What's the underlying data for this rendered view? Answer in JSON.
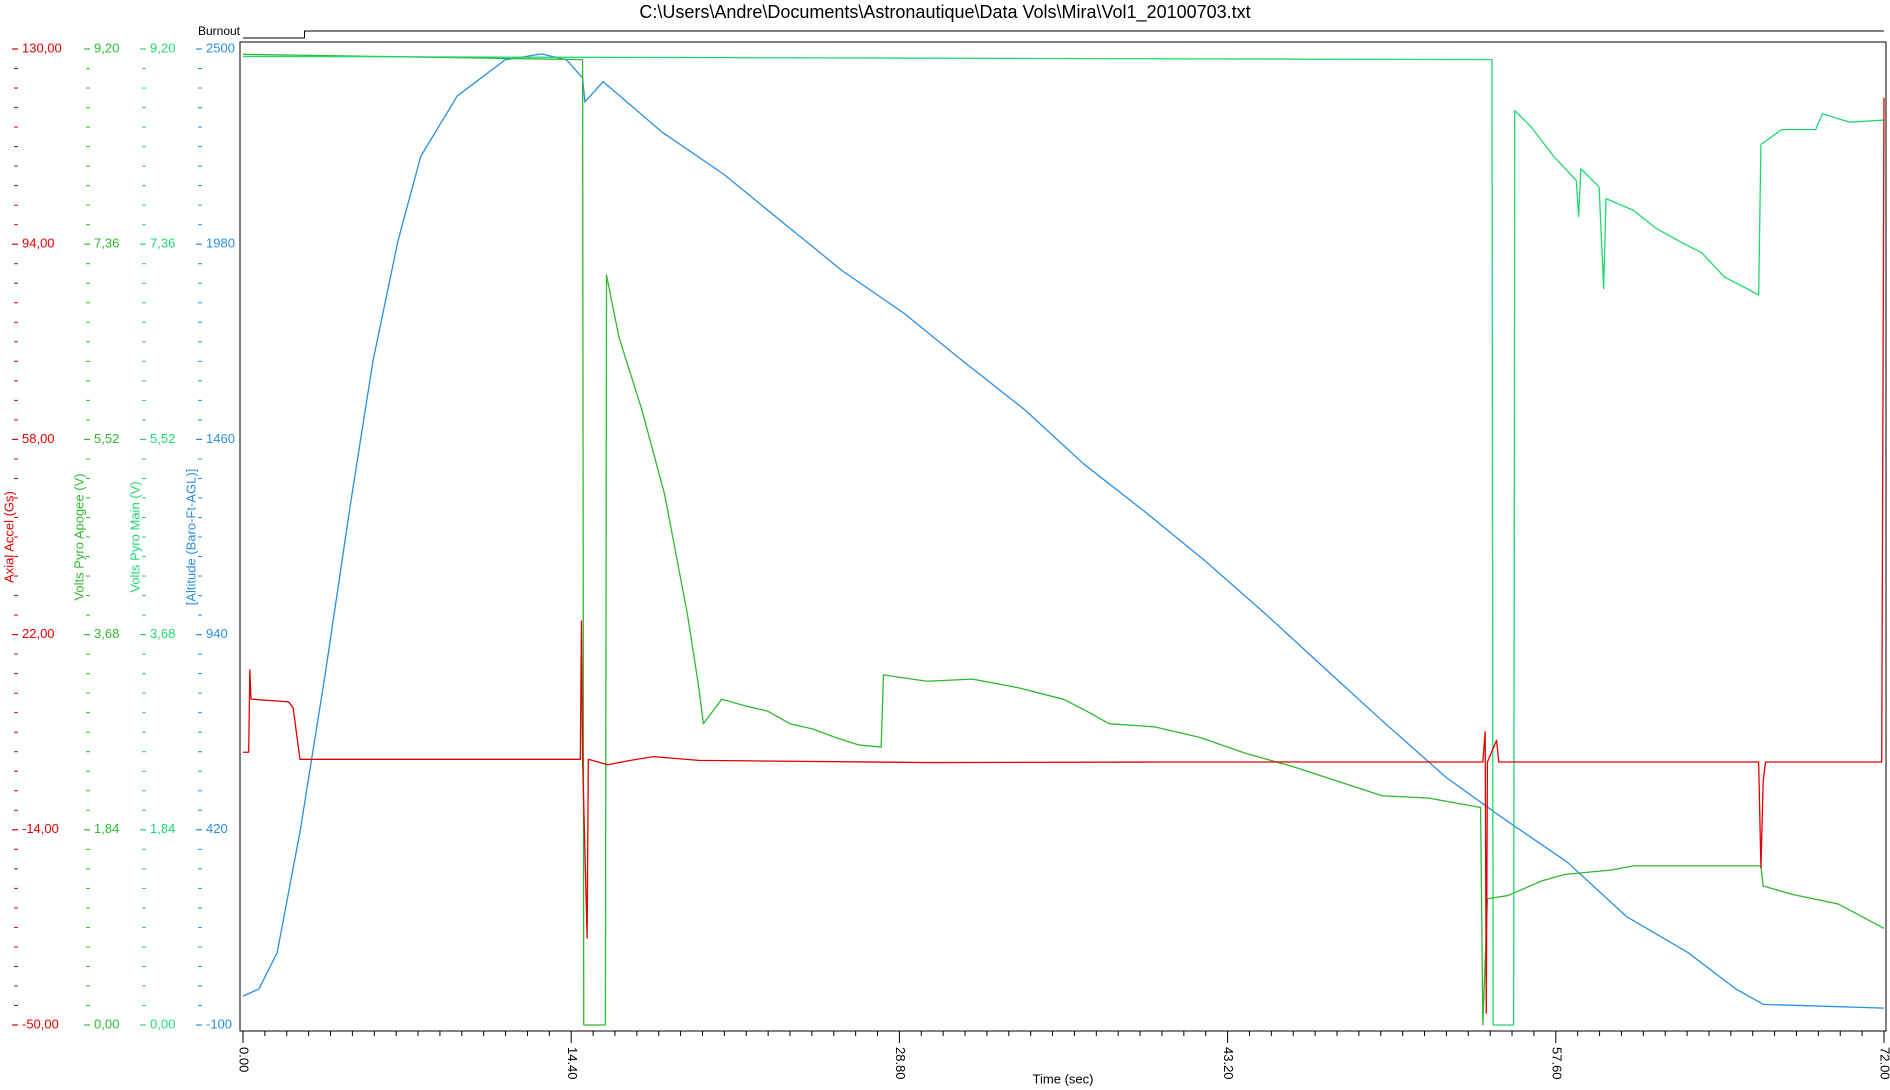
{
  "chart_data": {
    "type": "line",
    "title": "C:\\Users\\Andre\\Documents\\Astronautique\\Data Vols\\Mira\\Vol1_20100703.txt",
    "xlabel": "Time (sec)",
    "xlim": [
      0,
      72
    ],
    "xticks": [
      {
        "value": 0,
        "label": "0.00"
      },
      {
        "value": 14.4,
        "label": "14.40"
      },
      {
        "value": 28.8,
        "label": "28.80"
      },
      {
        "value": 43.2,
        "label": "43.20"
      },
      {
        "value": 57.6,
        "label": "57.60"
      },
      {
        "value": 72,
        "label": "72.00"
      }
    ],
    "y_axes": [
      {
        "label": "Axial Accel (Gs)",
        "color": "#e00000",
        "lim": [
          -50,
          130
        ],
        "ticks": [
          {
            "value": -50,
            "label": "-50,00"
          },
          {
            "value": -14,
            "label": "-14,00"
          },
          {
            "value": 22,
            "label": "22,00"
          },
          {
            "value": 58,
            "label": "58,00"
          },
          {
            "value": 94,
            "label": "94,00"
          },
          {
            "value": 130,
            "label": "130,00"
          }
        ]
      },
      {
        "label": "Volts Pyro Apogee (V)",
        "color": "#30b830",
        "lim": [
          0,
          9.2
        ],
        "ticks": [
          {
            "value": 0,
            "label": "0,00"
          },
          {
            "value": 1.84,
            "label": "1,84"
          },
          {
            "value": 3.68,
            "label": "3,68"
          },
          {
            "value": 5.52,
            "label": "5,52"
          },
          {
            "value": 7.36,
            "label": "7,36"
          },
          {
            "value": 9.2,
            "label": "9,20"
          }
        ]
      },
      {
        "label": "Volts Pyro Main (V)",
        "color": "#20d870",
        "lim": [
          0,
          9.2
        ],
        "ticks": [
          {
            "value": 0,
            "label": "0,00"
          },
          {
            "value": 1.84,
            "label": "1,84"
          },
          {
            "value": 3.68,
            "label": "3,68"
          },
          {
            "value": 5.52,
            "label": "5,52"
          },
          {
            "value": 7.36,
            "label": "7,36"
          },
          {
            "value": 9.2,
            "label": "9,20"
          }
        ]
      },
      {
        "label": "[Altitude (Baro-Ft-AGL)]",
        "color": "#2a8ee0",
        "lim": [
          -100,
          2500
        ],
        "ticks": [
          -100,
          420,
          940,
          1460,
          1980,
          2500
        ]
      }
    ],
    "series": [
      {
        "axis": 3,
        "color": "#2a8ee0",
        "x": [
          0,
          0.7,
          1.5,
          2.5,
          3.6,
          4.7,
          5.7,
          6.8,
          7.8,
          9.4,
          11.5,
          13.1,
          14.2,
          14.9,
          15.0,
          15.8,
          18.4,
          21.1,
          23.7,
          26.3,
          29.0,
          31.6,
          34.3,
          36.9,
          39.6,
          42.2,
          44.9,
          47.5,
          50.1,
          52.8,
          55.4,
          58.1,
          60.7,
          63.4,
          65.5,
          66.7,
          72
        ],
        "values": [
          -23,
          -4,
          93,
          414,
          832,
          1282,
          1668,
          1989,
          2214,
          2375,
          2471,
          2487,
          2471,
          2423,
          2359,
          2413,
          2278,
          2166,
          2037,
          1909,
          1796,
          1668,
          1539,
          1394,
          1266,
          1137,
          993,
          848,
          704,
          559,
          446,
          334,
          189,
          93,
          -4,
          -45,
          -55
        ]
      },
      {
        "axis": 1,
        "color": "#30b830",
        "x": [
          0,
          14.9,
          14.95,
          15.9,
          15.95,
          16.5,
          17.5,
          18.5,
          19.5,
          20.0,
          20.2,
          21,
          22,
          23,
          24,
          25,
          26,
          27,
          28.0,
          28.1,
          30,
          32,
          34,
          36,
          37,
          38,
          40,
          42,
          44,
          46,
          48,
          50,
          52,
          54.3,
          54.4,
          54.6,
          55.5,
          57,
          58,
          60,
          61,
          66.6,
          66.7,
          68,
          70,
          72
        ],
        "values": [
          9.15,
          9.1,
          0,
          0,
          7.07,
          6.48,
          5.8,
          5.0,
          3.87,
          3.18,
          2.84,
          3.07,
          3.01,
          2.96,
          2.84,
          2.79,
          2.71,
          2.64,
          2.62,
          3.3,
          3.24,
          3.26,
          3.18,
          3.07,
          2.96,
          2.84,
          2.81,
          2.71,
          2.56,
          2.44,
          2.3,
          2.16,
          2.14,
          2.05,
          0,
          1.19,
          1.22,
          1.36,
          1.42,
          1.46,
          1.5,
          1.5,
          1.31,
          1.23,
          1.14,
          0.91
        ]
      },
      {
        "axis": 2,
        "color": "#20d870",
        "x": [
          0,
          54.8,
          54.85,
          55.75,
          55.8,
          56.5,
          57.5,
          58.5,
          58.6,
          58.7,
          59.5,
          59.7,
          59.8,
          61,
          62,
          63,
          64,
          65,
          66,
          66.5,
          66.6,
          67.5,
          69,
          69.3,
          70.5,
          72
        ],
        "values": [
          9.13,
          9.1,
          0,
          0,
          8.62,
          8.47,
          8.19,
          7.96,
          7.62,
          8.07,
          7.9,
          6.94,
          7.79,
          7.68,
          7.51,
          7.39,
          7.28,
          7.05,
          6.94,
          6.88,
          8.3,
          8.44,
          8.44,
          8.59,
          8.51,
          8.53
        ]
      },
      {
        "axis": 0,
        "color": "#e00000",
        "x": [
          0,
          0.25,
          0.3,
          0.35,
          2.0,
          2.2,
          2.5,
          14.8,
          14.85,
          14.9,
          15.1,
          15.15,
          16,
          17,
          18,
          20,
          30,
          40,
          50,
          54.4,
          54.5,
          54.55,
          54.6,
          55.0,
          55.1,
          66.5,
          66.6,
          66.7,
          66.8,
          71.9,
          72
        ],
        "values": [
          0.3,
          0.3,
          15.5,
          10.1,
          9.6,
          8.5,
          -1.0,
          -1.0,
          24.5,
          -1.0,
          -34,
          -1.0,
          -2,
          -1.2,
          -0.5,
          -1.2,
          -1.6,
          -1.5,
          -1.5,
          -1.5,
          4.1,
          -47.8,
          -1.5,
          2.5,
          -1.5,
          -1.5,
          -21,
          -5,
          -1.5,
          -1.5,
          121
        ]
      }
    ],
    "events": [
      {
        "label": "Burnout",
        "x": 2.7
      }
    ]
  }
}
